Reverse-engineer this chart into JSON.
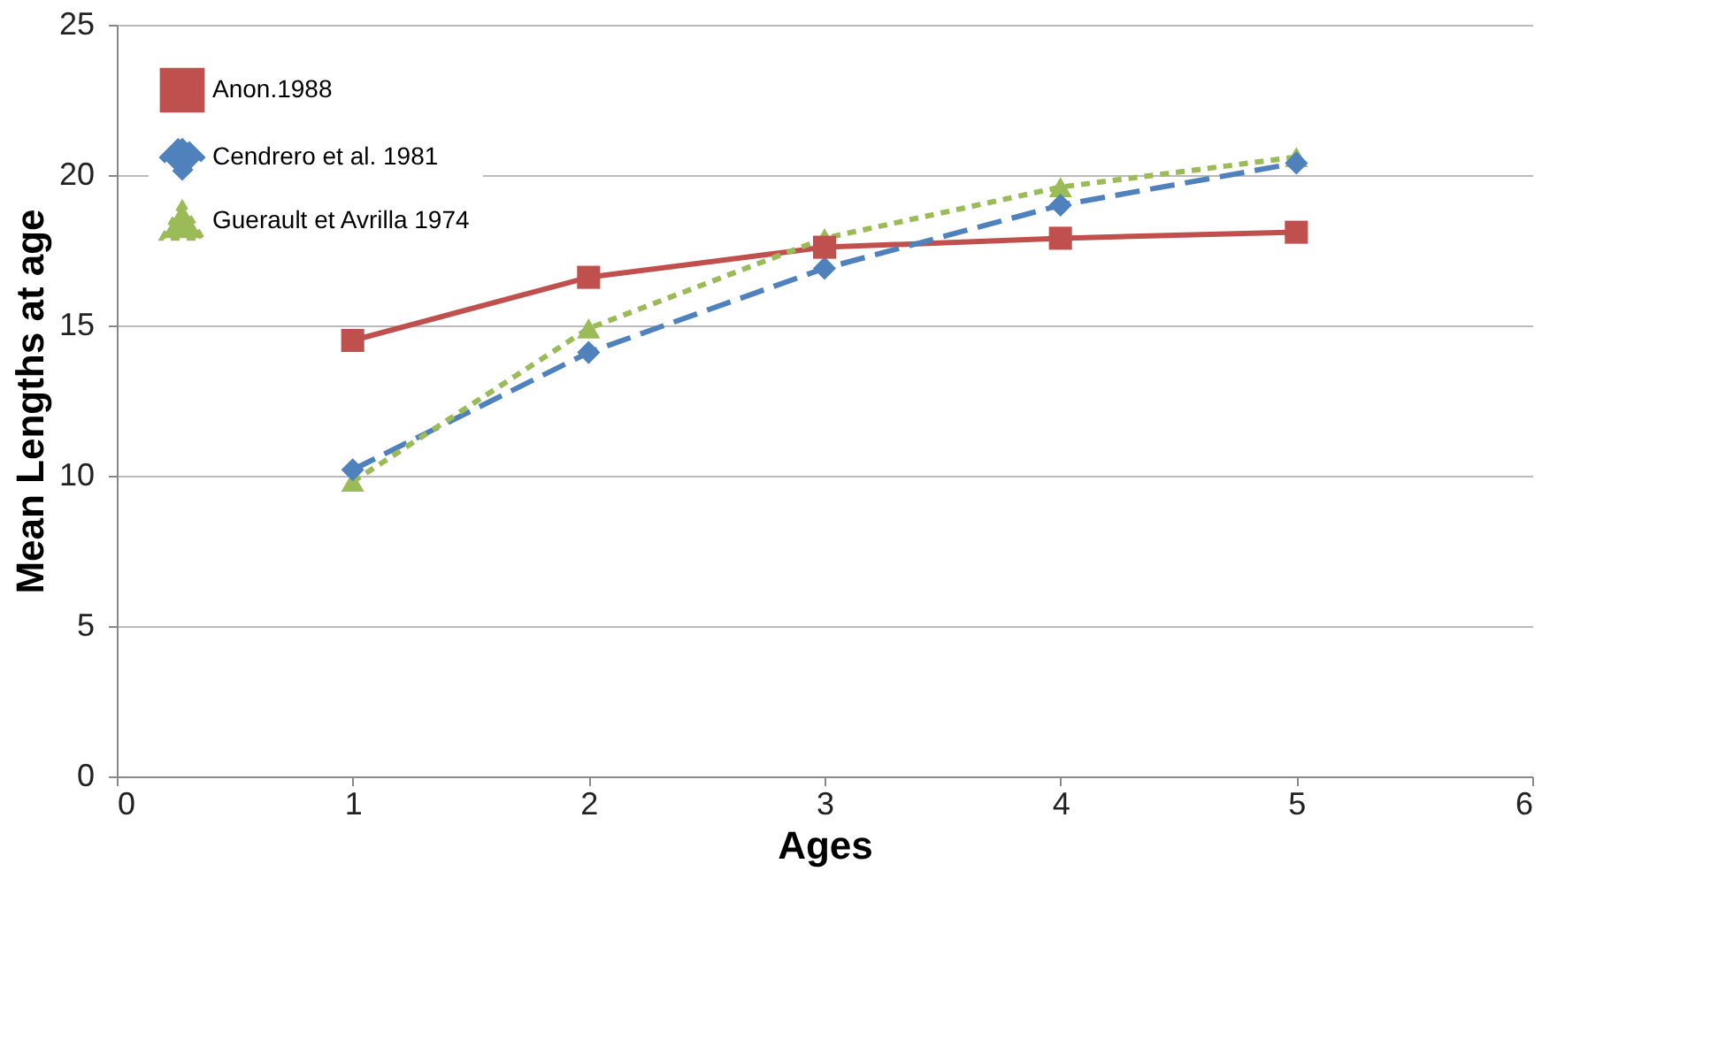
{
  "chart_data": {
    "type": "line",
    "xlabel": "Ages",
    "ylabel": "Mean Lengths at age",
    "x": [
      1,
      2,
      3,
      4,
      5
    ],
    "xlim": [
      0,
      6
    ],
    "xticks": [
      0,
      1,
      2,
      3,
      4,
      5,
      6
    ],
    "ylim": [
      0,
      25
    ],
    "yticks": [
      0,
      5,
      10,
      15,
      20,
      25
    ],
    "grid": "y",
    "legend": "top left",
    "series": [
      {
        "name": "Anon.1988",
        "color": "#c0504d",
        "marker": "square",
        "line_style": "solid",
        "values": [
          14.5,
          16.6,
          17.6,
          17.9,
          18.1
        ]
      },
      {
        "name": "Cendrero et al. 1981",
        "color": "#4f81bd",
        "marker": "diamond",
        "line_style": "dashed",
        "values": [
          10.2,
          14.1,
          16.9,
          19.0,
          20.4
        ]
      },
      {
        "name": "Guerault et Avrilla 1974",
        "color": "#9bbb59",
        "marker": "triangle",
        "line_style": "dotted",
        "values": [
          9.8,
          14.9,
          17.9,
          19.6,
          20.6
        ]
      }
    ]
  }
}
